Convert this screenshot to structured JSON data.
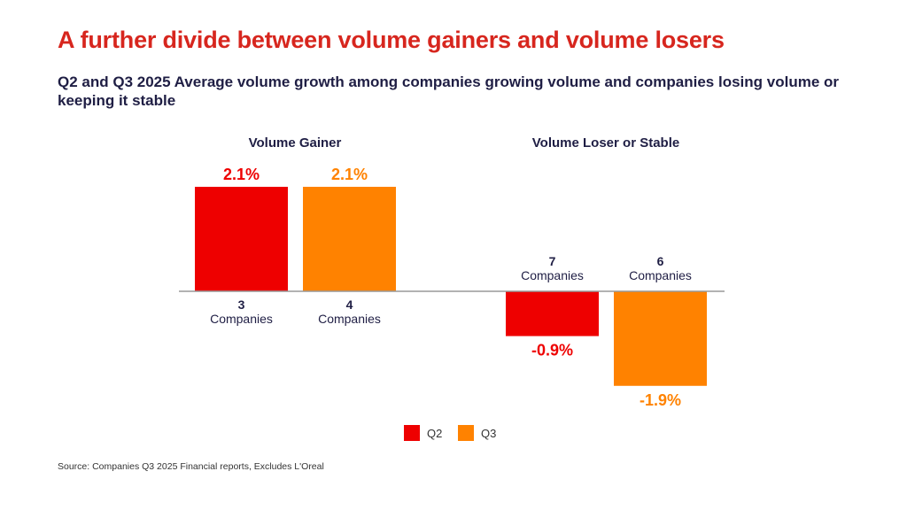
{
  "title": "A further divide between volume gainers and volume losers",
  "subtitle": "Q2 and Q3 2025 Average volume growth among companies growing volume and companies losing volume or keeping it stable",
  "source": "Source: Companies Q3 2025 Financial reports, Excludes L'Oreal",
  "colors": {
    "title": "#d7261e",
    "text": "#1f1e44",
    "q2": "#ee0000",
    "q3": "#ff8200",
    "axis": "#999999"
  },
  "chart_data": {
    "type": "bar",
    "title": "Q2 and Q3 2025 Average volume growth",
    "categories": [
      "Volume Gainer",
      "Volume Loser or Stable"
    ],
    "series": [
      {
        "name": "Q2",
        "values": [
          2.1,
          -0.9
        ],
        "labels": [
          "2.1%",
          "-0.9%"
        ],
        "companies": [
          "3",
          "7"
        ]
      },
      {
        "name": "Q3",
        "values": [
          2.1,
          -1.9
        ],
        "labels": [
          "2.1%",
          "-1.9%"
        ],
        "companies": [
          "4",
          "6"
        ]
      }
    ],
    "companies_word": "Companies",
    "unit": "%",
    "legend": {
      "position": "bottom",
      "entries": [
        "Q2",
        "Q3"
      ]
    },
    "grid": false,
    "ylim": [
      -1.9,
      2.1
    ]
  }
}
